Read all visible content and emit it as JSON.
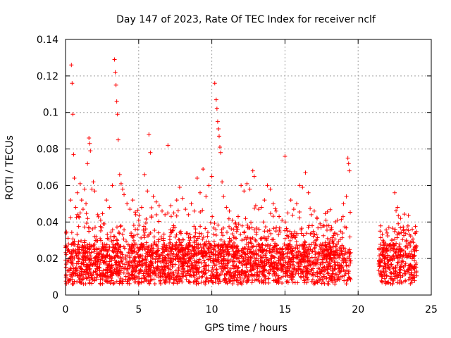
{
  "chart_data": {
    "type": "scatter",
    "title": "Day 147 of 2023, Rate Of TEC Index for receiver nclf",
    "xlabel": "GPS time / hours",
    "ylabel": "ROTI / TECUs",
    "xlim": [
      0,
      25
    ],
    "ylim": [
      0,
      0.14
    ],
    "xticks": [
      0,
      5,
      10,
      15,
      20,
      25
    ],
    "xtick_labels": [
      "0",
      "5",
      "10",
      "15",
      "20",
      "25"
    ],
    "yticks": [
      0,
      0.02,
      0.04,
      0.06,
      0.08,
      0.1,
      0.12,
      0.14
    ],
    "ytick_labels": [
      "0",
      "0.02",
      "0.04",
      "0.06",
      "0.08",
      "0.1",
      "0.12",
      "0.14"
    ],
    "grid": true,
    "marker": "plus",
    "color": "#ff0000",
    "series": [
      {
        "name": "ROTI",
        "x": [
          0.05,
          0.2,
          0.35,
          0.4,
          0.45,
          0.5,
          0.55,
          0.6,
          0.7,
          0.8,
          0.9,
          1.0,
          1.1,
          1.2,
          1.3,
          1.4,
          1.5,
          1.6,
          1.65,
          1.7,
          1.8,
          1.9,
          2.0,
          2.2,
          2.4,
          2.6,
          2.8,
          3.0,
          3.2,
          3.35,
          3.4,
          3.45,
          3.5,
          3.55,
          3.6,
          3.7,
          3.8,
          3.9,
          4.0,
          4.2,
          4.4,
          4.6,
          4.8,
          5.0,
          5.2,
          5.4,
          5.6,
          5.7,
          5.8,
          6.0,
          6.2,
          6.4,
          6.6,
          6.8,
          7.0,
          7.2,
          7.4,
          7.6,
          7.8,
          8.0,
          8.2,
          8.4,
          8.6,
          8.8,
          9.0,
          9.2,
          9.4,
          9.6,
          9.8,
          10.0,
          10.2,
          10.3,
          10.35,
          10.4,
          10.45,
          10.5,
          10.55,
          10.6,
          10.7,
          10.8,
          11.0,
          11.2,
          11.4,
          11.6,
          11.8,
          12.0,
          12.2,
          12.4,
          12.6,
          12.8,
          12.9,
          13.0,
          13.2,
          13.4,
          13.6,
          13.8,
          14.0,
          14.2,
          14.4,
          14.6,
          14.8,
          15.0,
          15.2,
          15.4,
          15.6,
          15.8,
          16.0,
          16.2,
          16.4,
          16.6,
          16.8,
          17.0,
          17.2,
          17.4,
          17.6,
          17.8,
          18.0,
          18.2,
          18.4,
          18.6,
          18.8,
          19.0,
          19.2,
          19.3,
          19.35,
          19.4,
          21.5,
          21.7,
          21.9,
          22.1,
          22.3,
          22.5,
          22.7,
          22.9,
          23.1,
          23.3,
          23.5,
          23.7,
          23.9
        ],
        "y": [
          0.034,
          0.028,
          0.052,
          0.126,
          0.116,
          0.099,
          0.077,
          0.064,
          0.048,
          0.056,
          0.043,
          0.061,
          0.052,
          0.047,
          0.058,
          0.05,
          0.072,
          0.086,
          0.083,
          0.079,
          0.058,
          0.062,
          0.057,
          0.044,
          0.041,
          0.039,
          0.052,
          0.048,
          0.06,
          0.129,
          0.122,
          0.115,
          0.106,
          0.099,
          0.085,
          0.066,
          0.061,
          0.058,
          0.055,
          0.05,
          0.047,
          0.052,
          0.044,
          0.041,
          0.048,
          0.066,
          0.057,
          0.088,
          0.078,
          0.054,
          0.051,
          0.049,
          0.046,
          0.044,
          0.082,
          0.049,
          0.045,
          0.052,
          0.059,
          0.053,
          0.047,
          0.044,
          0.05,
          0.046,
          0.064,
          0.056,
          0.069,
          0.054,
          0.06,
          0.065,
          0.116,
          0.107,
          0.102,
          0.095,
          0.091,
          0.087,
          0.081,
          0.078,
          0.062,
          0.054,
          0.048,
          0.046,
          0.041,
          0.039,
          0.043,
          0.06,
          0.057,
          0.061,
          0.058,
          0.068,
          0.065,
          0.049,
          0.047,
          0.048,
          0.052,
          0.06,
          0.058,
          0.05,
          0.046,
          0.043,
          0.041,
          0.076,
          0.045,
          0.052,
          0.047,
          0.05,
          0.06,
          0.059,
          0.067,
          0.056,
          0.044,
          0.046,
          0.042,
          0.039,
          0.038,
          0.041,
          0.038,
          0.036,
          0.034,
          0.033,
          0.035,
          0.05,
          0.054,
          0.075,
          0.072,
          0.068,
          0.035,
          0.03,
          0.028,
          0.027,
          0.03,
          0.056,
          0.048,
          0.042,
          0.036,
          0.03,
          0.033,
          0.036,
          0.034
        ],
        "density_note": "Dense band of points between about 0.005 and 0.035 from hour 0 to 19.5 and from hour 21.4 to 24; no data between about 19.5 and 21.4 hours."
      }
    ]
  }
}
